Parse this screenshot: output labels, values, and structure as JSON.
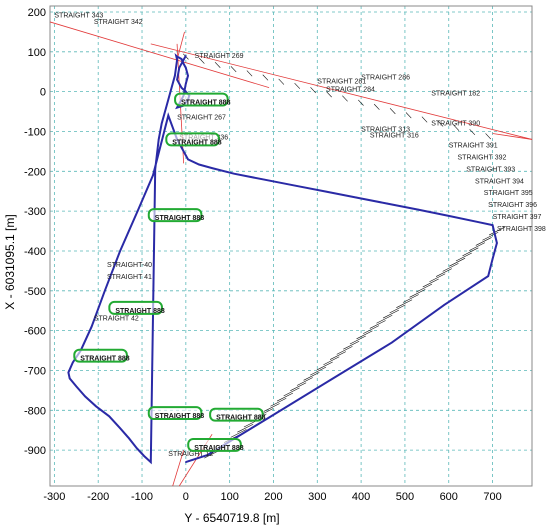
{
  "chart_data": {
    "type": "line",
    "title": "",
    "xlabel": "Y - 6540719.8 [m]",
    "ylabel": "X - 6031095.1 [m]",
    "xlim": [
      -310,
      790
    ],
    "ylim": [
      -990,
      215
    ],
    "xticks": [
      -300,
      -200,
      -100,
      0,
      100,
      200,
      300,
      400,
      500,
      600,
      700
    ],
    "yticks": [
      200,
      100,
      0,
      -100,
      -200,
      -300,
      -400,
      -500,
      -600,
      -700,
      -800,
      -900
    ],
    "grid": true,
    "colors": {
      "track": "#2a2aa6",
      "grid": "#5ab8b8",
      "callout": "#22aa33",
      "reference": "#e23b3b",
      "label": "#222222"
    },
    "series": [
      {
        "x": [
          0,
          50,
          190,
          330,
          470,
          590,
          690,
          700,
          710,
          700,
          670,
          600,
          530,
          460,
          390,
          320,
          250,
          180,
          110,
          60,
          30,
          5,
          -20,
          -40,
          -75,
          -110,
          -150,
          -185,
          -215,
          -240,
          -258,
          -268,
          -265,
          -250,
          -230,
          -205,
          -175,
          -150,
          -130,
          -112,
          -95,
          -80,
          -70,
          -62,
          -55,
          -45,
          -35,
          -25,
          -20,
          -22,
          -20,
          -15,
          -10,
          -5,
          0,
          5,
          0,
          -5,
          -15,
          -20,
          -5,
          5,
          8,
          0,
          -10,
          -20,
          -15,
          0
        ],
        "y": [
          -930,
          -912,
          -818,
          -724,
          -630,
          -535,
          -463,
          -420,
          -380,
          -335,
          -328,
          -312,
          -296,
          -281,
          -266,
          -251,
          -236,
          -221,
          -206,
          -192,
          -183,
          -170,
          -120,
          -60,
          -210,
          -300,
          -400,
          -500,
          -590,
          -650,
          -680,
          -705,
          -720,
          -740,
          -765,
          -790,
          -815,
          -845,
          -870,
          -895,
          -915,
          -930,
          -195,
          -120,
          -80,
          -40,
          0,
          40,
          80,
          90,
          88,
          85,
          82,
          70,
          60,
          40,
          20,
          -10,
          -30,
          -40,
          -35,
          -20,
          -10,
          0,
          10,
          30,
          60,
          90
        ]
      }
    ],
    "segment_labels": [
      "STRAIGHT 343",
      "STRAIGHT 342",
      "STRAIGHT 269",
      "STRAIGHT 267",
      "STRAIGHT 336",
      "STRAIGHT-40",
      "STRAIGHT 41",
      "STRAIGHT 42",
      "STRAIGHT 12",
      "STRAIGHT 313",
      "STRAIGHT 316",
      "STRAIGHT 281",
      "STRAIGHT 284",
      "STRAIGHT 182",
      "STRAIGHT 286",
      "STRAIGHT 390",
      "STRAIGHT 391",
      "STRAIGHT 392",
      "STRAIGHT 393",
      "STRAIGHT 394",
      "STRAIGHT 395",
      "STRAIGHT 396",
      "STRAIGHT 397",
      "STRAIGHT 398"
    ],
    "callout_labels": [
      "STRAIGHT 888",
      "STRAIGHT 888",
      "STRAIGHT 888",
      "STRAIGHT 888",
      "STRAIGHT 888",
      "STRAIGHT 888",
      "STRAIGHT 888",
      "STRAIGHT 888",
      "STRAIGHT 888"
    ]
  }
}
